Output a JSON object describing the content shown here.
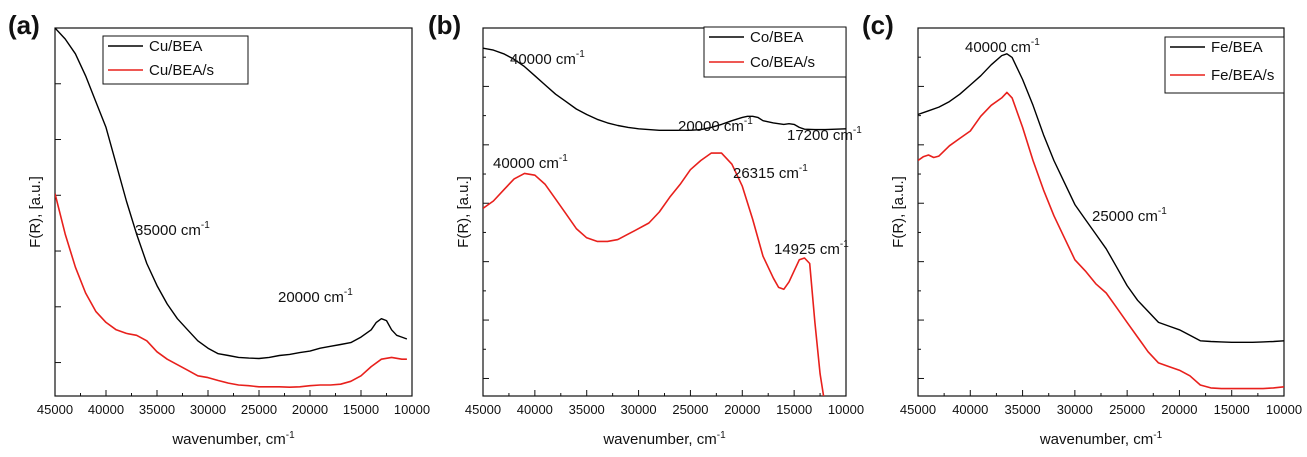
{
  "figure": {
    "xlabel_prefix": "wavenumber, cm",
    "xlabel_sup": "-1",
    "ylabel": "F(R), [a.u.]"
  },
  "chart_data": [
    {
      "panel": "(a)",
      "type": "line",
      "xlabel": "wavenumber, cm-1",
      "ylabel": "F(R), [a.u.]",
      "xlim": [
        45000,
        10000
      ],
      "x_reversed": true,
      "ylim": [
        0,
        1
      ],
      "yticks_labeled": false,
      "xticks": [
        45000,
        40000,
        35000,
        30000,
        25000,
        20000,
        15000,
        10000
      ],
      "xtick_labels": [
        "45000",
        "40000",
        "35000",
        "30000",
        "25000",
        "20000",
        "15000",
        "10000"
      ],
      "legend_position": "top-center",
      "series": [
        {
          "name": "Cu/BEA",
          "color": "#000000",
          "x": [
            45000,
            44000,
            43000,
            42000,
            41000,
            40000,
            39000,
            38000,
            37000,
            36000,
            35000,
            34000,
            33000,
            32000,
            31000,
            30000,
            29000,
            28000,
            27000,
            26000,
            25000,
            24000,
            23000,
            22000,
            21000,
            20000,
            19000,
            18000,
            17000,
            16000,
            15000,
            14500,
            14000,
            13500,
            13000,
            12500,
            12000,
            11500,
            11000,
            10500
          ],
          "y": [
            1.0,
            0.97,
            0.93,
            0.87,
            0.8,
            0.73,
            0.63,
            0.53,
            0.44,
            0.36,
            0.3,
            0.25,
            0.21,
            0.18,
            0.15,
            0.13,
            0.115,
            0.11,
            0.105,
            0.103,
            0.102,
            0.105,
            0.11,
            0.113,
            0.118,
            0.122,
            0.13,
            0.135,
            0.14,
            0.145,
            0.16,
            0.17,
            0.18,
            0.2,
            0.21,
            0.205,
            0.18,
            0.165,
            0.16,
            0.155
          ]
        },
        {
          "name": "Cu/BEA/s",
          "color": "#e8201c",
          "x": [
            45000,
            44000,
            43000,
            42000,
            41000,
            40000,
            39000,
            38000,
            37000,
            36000,
            35000,
            34000,
            33000,
            32000,
            31000,
            30000,
            29000,
            28000,
            27000,
            26000,
            25000,
            24000,
            23000,
            22000,
            21000,
            20000,
            19000,
            18000,
            17000,
            16000,
            15000,
            14000,
            13000,
            12000,
            11000,
            10500
          ],
          "y": [
            0.55,
            0.44,
            0.35,
            0.28,
            0.23,
            0.2,
            0.18,
            0.17,
            0.165,
            0.15,
            0.12,
            0.1,
            0.085,
            0.07,
            0.055,
            0.05,
            0.042,
            0.035,
            0.03,
            0.028,
            0.025,
            0.025,
            0.025,
            0.024,
            0.025,
            0.028,
            0.03,
            0.03,
            0.032,
            0.04,
            0.055,
            0.08,
            0.1,
            0.105,
            0.1,
            0.1
          ]
        }
      ],
      "annotations": [
        {
          "base": "35000 cm",
          "sup": "-1",
          "at_x": 35000
        },
        {
          "base": "20000 cm",
          "sup": "-1",
          "at_x": 20000
        }
      ]
    },
    {
      "panel": "(b)",
      "type": "line",
      "xlabel": "wavenumber, cm-1",
      "ylabel": "F(R), [a.u.]",
      "xlim": [
        45000,
        10000
      ],
      "x_reversed": true,
      "ylim": [
        0,
        1
      ],
      "yticks_labeled": false,
      "xticks": [
        45000,
        40000,
        35000,
        30000,
        25000,
        20000,
        15000,
        10000
      ],
      "xtick_labels": [
        "45000",
        "40000",
        "35000",
        "30000",
        "25000",
        "20000",
        "15000",
        "10000"
      ],
      "legend_position": "top-right",
      "series": [
        {
          "name": "Co/BEA",
          "color": "#000000",
          "x": [
            45000,
            44000,
            43000,
            42000,
            41000,
            40000,
            39000,
            38000,
            37000,
            36000,
            35000,
            34000,
            33000,
            32000,
            31000,
            30000,
            29000,
            28000,
            27000,
            26000,
            25000,
            24000,
            23000,
            22000,
            21000,
            20000,
            19500,
            19000,
            18500,
            18000,
            17500,
            17000,
            16500,
            16000,
            15500,
            15000,
            14500,
            14000,
            13000,
            12000,
            11000,
            10000
          ],
          "y": [
            0.945,
            0.94,
            0.93,
            0.915,
            0.895,
            0.87,
            0.845,
            0.82,
            0.8,
            0.78,
            0.765,
            0.752,
            0.742,
            0.735,
            0.73,
            0.726,
            0.724,
            0.722,
            0.722,
            0.722,
            0.722,
            0.724,
            0.73,
            0.738,
            0.748,
            0.757,
            0.76,
            0.76,
            0.757,
            0.748,
            0.745,
            0.742,
            0.74,
            0.738,
            0.74,
            0.738,
            0.73,
            0.725,
            0.724,
            0.724,
            0.725,
            0.726
          ]
        },
        {
          "name": "Co/BEA/s",
          "color": "#e8201c",
          "x": [
            45000,
            44000,
            43000,
            42000,
            41000,
            40000,
            39000,
            38000,
            37000,
            36000,
            35000,
            34000,
            33000,
            32000,
            31000,
            30000,
            29000,
            28000,
            27000,
            26000,
            25000,
            24000,
            23000,
            22000,
            21000,
            20000,
            19000,
            18000,
            17000,
            16500,
            16000,
            15500,
            15000,
            14500,
            14000,
            13500,
            13000,
            12500,
            12000
          ],
          "y": [
            0.51,
            0.53,
            0.56,
            0.59,
            0.605,
            0.6,
            0.575,
            0.535,
            0.495,
            0.455,
            0.43,
            0.42,
            0.42,
            0.425,
            0.44,
            0.455,
            0.47,
            0.5,
            0.54,
            0.575,
            0.615,
            0.64,
            0.66,
            0.66,
            0.63,
            0.57,
            0.48,
            0.38,
            0.32,
            0.295,
            0.29,
            0.31,
            0.34,
            0.37,
            0.375,
            0.36,
            0.2,
            0.06,
            -0.03
          ]
        }
      ],
      "annotations": [
        {
          "base": "40000 cm",
          "sup": "-1",
          "at_x": 40000
        },
        {
          "base": "20000 cm",
          "sup": "-1",
          "at_x": 20000
        },
        {
          "base": "17200 cm",
          "sup": "-1",
          "at_x": 17200
        },
        {
          "base": "40000 cm",
          "sup": "-1",
          "at_x": 40000
        },
        {
          "base": "26315 cm",
          "sup": "-1",
          "at_x": 26315
        },
        {
          "base": "14925 cm",
          "sup": "-1",
          "at_x": 14925
        }
      ]
    },
    {
      "panel": "(c)",
      "type": "line",
      "xlabel": "wavenumber, cm-1",
      "ylabel": "F(R), [a.u.]",
      "xlim": [
        45000,
        10000
      ],
      "x_reversed": true,
      "ylim": [
        0,
        1
      ],
      "yticks_labeled": false,
      "xticks": [
        45000,
        40000,
        35000,
        30000,
        25000,
        20000,
        15000,
        10000
      ],
      "xtick_labels": [
        "45000",
        "40000",
        "35000",
        "30000",
        "25000",
        "20000",
        "15000",
        "10000"
      ],
      "legend_position": "top-right",
      "series": [
        {
          "name": "Fe/BEA",
          "color": "#000000",
          "x": [
            45000,
            44000,
            43000,
            42000,
            41000,
            40000,
            39000,
            38000,
            37000,
            36500,
            36000,
            35000,
            34000,
            33000,
            32000,
            31000,
            30000,
            29000,
            28000,
            27000,
            26000,
            25000,
            24000,
            23000,
            22000,
            21000,
            20000,
            19000,
            18000,
            17000,
            16000,
            15000,
            14000,
            13000,
            12000,
            11000,
            10000
          ],
          "y": [
            0.765,
            0.775,
            0.785,
            0.8,
            0.82,
            0.845,
            0.87,
            0.9,
            0.925,
            0.93,
            0.92,
            0.86,
            0.79,
            0.71,
            0.64,
            0.58,
            0.52,
            0.48,
            0.44,
            0.4,
            0.35,
            0.3,
            0.26,
            0.23,
            0.2,
            0.19,
            0.18,
            0.165,
            0.15,
            0.148,
            0.147,
            0.146,
            0.146,
            0.146,
            0.147,
            0.148,
            0.15
          ]
        },
        {
          "name": "Fe/BEA/s",
          "color": "#e8201c",
          "x": [
            45000,
            44500,
            44000,
            43500,
            43000,
            42000,
            41000,
            40000,
            39000,
            38000,
            37000,
            36500,
            36000,
            35000,
            34000,
            33000,
            32000,
            31000,
            30000,
            29000,
            28000,
            27000,
            26000,
            25000,
            24000,
            23000,
            22000,
            21000,
            20000,
            19000,
            18000,
            17000,
            16000,
            15000,
            14000,
            13000,
            12000,
            11000,
            10000
          ],
          "y": [
            0.64,
            0.65,
            0.655,
            0.648,
            0.652,
            0.68,
            0.7,
            0.72,
            0.76,
            0.79,
            0.81,
            0.825,
            0.81,
            0.73,
            0.64,
            0.56,
            0.49,
            0.43,
            0.37,
            0.34,
            0.305,
            0.28,
            0.24,
            0.2,
            0.16,
            0.12,
            0.09,
            0.08,
            0.07,
            0.055,
            0.03,
            0.022,
            0.02,
            0.02,
            0.02,
            0.02,
            0.02,
            0.022,
            0.025
          ]
        }
      ],
      "annotations": [
        {
          "base": "40000 cm",
          "sup": "-1",
          "at_x": 40000
        },
        {
          "base": "25000 cm",
          "sup": "-1",
          "at_x": 25000
        }
      ]
    }
  ]
}
